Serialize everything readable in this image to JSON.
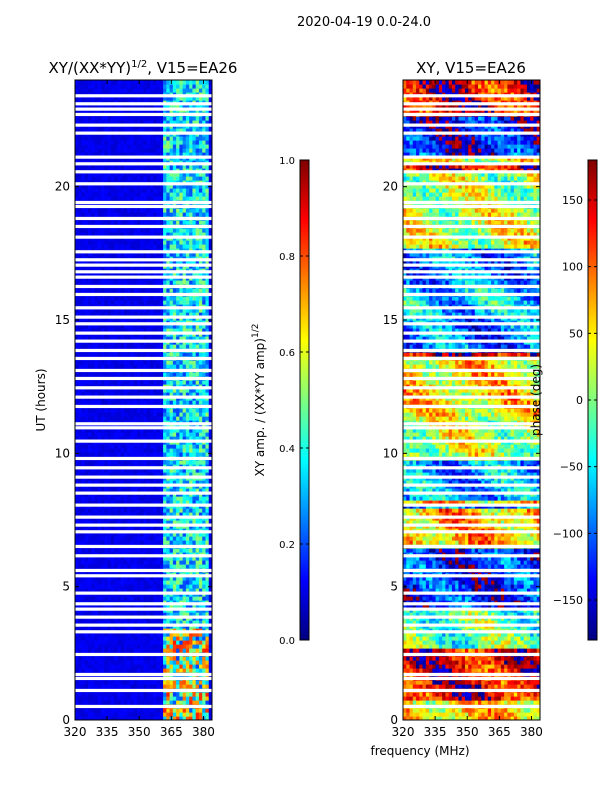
{
  "figure": {
    "suptitle": "2020-04-19 0.0-24.0",
    "common_xlabel": "frequency (MHz)"
  },
  "colormaps": {
    "jet": [
      "#00007f",
      "#0000ff",
      "#007fff",
      "#00ffff",
      "#7fff7f",
      "#ffff00",
      "#ff7f00",
      "#ff0000",
      "#7f0000"
    ],
    "blank_row_color": "#ffffff"
  },
  "chart_data": [
    {
      "type": "heatmap",
      "name": "amplitude-ratio",
      "title_prefix": "XY/(XX*YY)",
      "title_exponent": "1/2",
      "title_suffix": ", V15=EA26",
      "xlabel": "",
      "ylabel": "UT (hours)",
      "xlim": [
        320,
        384
      ],
      "ylim": [
        0,
        24
      ],
      "xticks": [
        320,
        335,
        350,
        365,
        380
      ],
      "yticks": [
        0,
        5,
        10,
        15,
        20
      ],
      "colorbar": {
        "label": "XY amp. / (XX*YY amp)",
        "label_exponent": "1/2",
        "range": [
          0.0,
          1.0
        ],
        "ticks": [
          "0.0",
          "0.2",
          "0.4",
          "0.6",
          "0.8",
          "1.0"
        ]
      },
      "feature_band_mhz": [
        361,
        382
      ],
      "description_values": "low amplitude (~0.05) below 361 MHz; mottled 0.2-0.6 between 361-382 MHz"
    },
    {
      "type": "heatmap",
      "name": "phase",
      "title_prefix": "XY, V15=EA26",
      "xlabel": "frequency (MHz)",
      "ylabel": "",
      "xlim": [
        320,
        384
      ],
      "ylim": [
        0,
        24
      ],
      "xticks": [
        320,
        335,
        350,
        365,
        380
      ],
      "yticks": [
        0,
        5,
        10,
        15,
        20
      ],
      "colorbar": {
        "label": "phase (deg)",
        "range": [
          -180,
          180
        ],
        "ticks": [
          "−150",
          "−100",
          "−50",
          "0",
          "50",
          "100",
          "150"
        ]
      },
      "description_values": "phase spans full -180 to 180 deg, horizontally banded structure"
    }
  ],
  "blank_rows_hours": [
    0.5,
    1.1,
    1.55,
    1.7,
    2.45,
    3.3,
    3.55,
    3.85,
    4.15,
    4.35,
    4.75,
    5.4,
    5.6,
    6.15,
    6.5,
    7.05,
    7.3,
    7.6,
    8.05,
    8.5,
    8.8,
    9.1,
    9.45,
    9.8,
    10.45,
    10.95,
    11.1,
    11.75,
    12.1,
    12.45,
    12.8,
    13.1,
    13.55,
    13.85,
    14.2,
    14.5,
    14.85,
    15.1,
    15.45,
    15.95,
    16.25,
    16.6,
    16.8,
    17.05,
    17.25,
    17.55,
    18.1,
    18.5,
    18.8,
    19.25,
    19.4,
    20.1,
    20.55,
    20.85,
    21.1,
    22.0,
    22.3,
    22.7,
    22.9,
    23.1,
    23.4
  ]
}
